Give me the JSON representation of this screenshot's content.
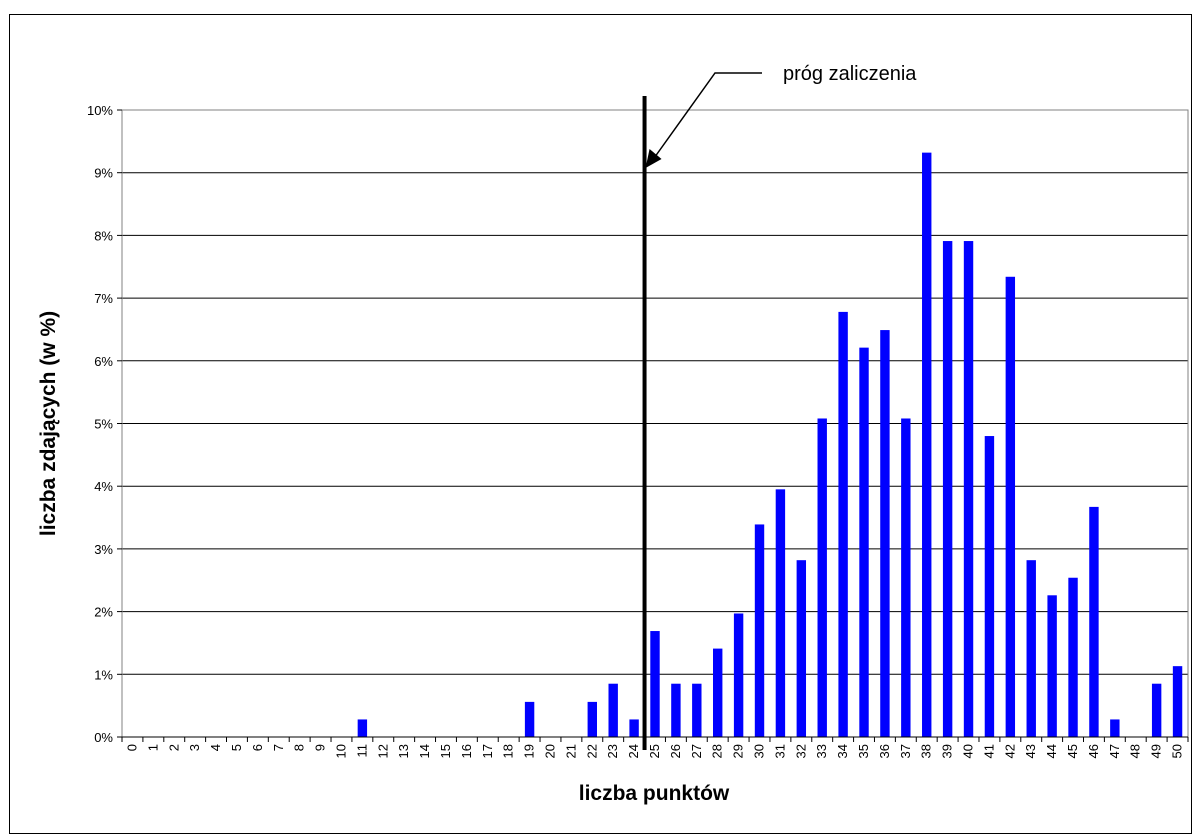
{
  "chart_data": {
    "type": "bar",
    "categories": [
      "0",
      "1",
      "2",
      "3",
      "4",
      "5",
      "6",
      "7",
      "8",
      "9",
      "10",
      "11",
      "12",
      "13",
      "14",
      "15",
      "16",
      "17",
      "18",
      "19",
      "20",
      "21",
      "22",
      "23",
      "24",
      "25",
      "26",
      "27",
      "28",
      "29",
      "30",
      "31",
      "32",
      "33",
      "34",
      "35",
      "36",
      "37",
      "38",
      "39",
      "40",
      "41",
      "42",
      "43",
      "44",
      "45",
      "46",
      "47",
      "48",
      "49",
      "50"
    ],
    "values": [
      0,
      0,
      0,
      0,
      0,
      0,
      0,
      0,
      0,
      0,
      0,
      0.28,
      0,
      0,
      0,
      0,
      0,
      0,
      0,
      0.56,
      0,
      0,
      0.56,
      0.85,
      0.28,
      1.69,
      0.85,
      0.85,
      1.41,
      1.97,
      3.39,
      3.95,
      2.82,
      5.08,
      6.78,
      6.21,
      6.49,
      5.08,
      9.32,
      7.91,
      7.91,
      4.8,
      7.34,
      2.82,
      2.26,
      2.54,
      3.67,
      0.28,
      0,
      0.85,
      1.13
    ],
    "xlabel": "liczba punktów",
    "ylabel": "liczba zdających (w %)",
    "ylim": [
      0,
      10
    ],
    "yticks": [
      "0%",
      "1%",
      "2%",
      "3%",
      "4%",
      "5%",
      "6%",
      "7%",
      "8%",
      "9%",
      "10%"
    ],
    "grid": true,
    "bar_color": "#0000ff",
    "threshold": {
      "x": 24.5,
      "label": "próg zaliczenia"
    }
  }
}
